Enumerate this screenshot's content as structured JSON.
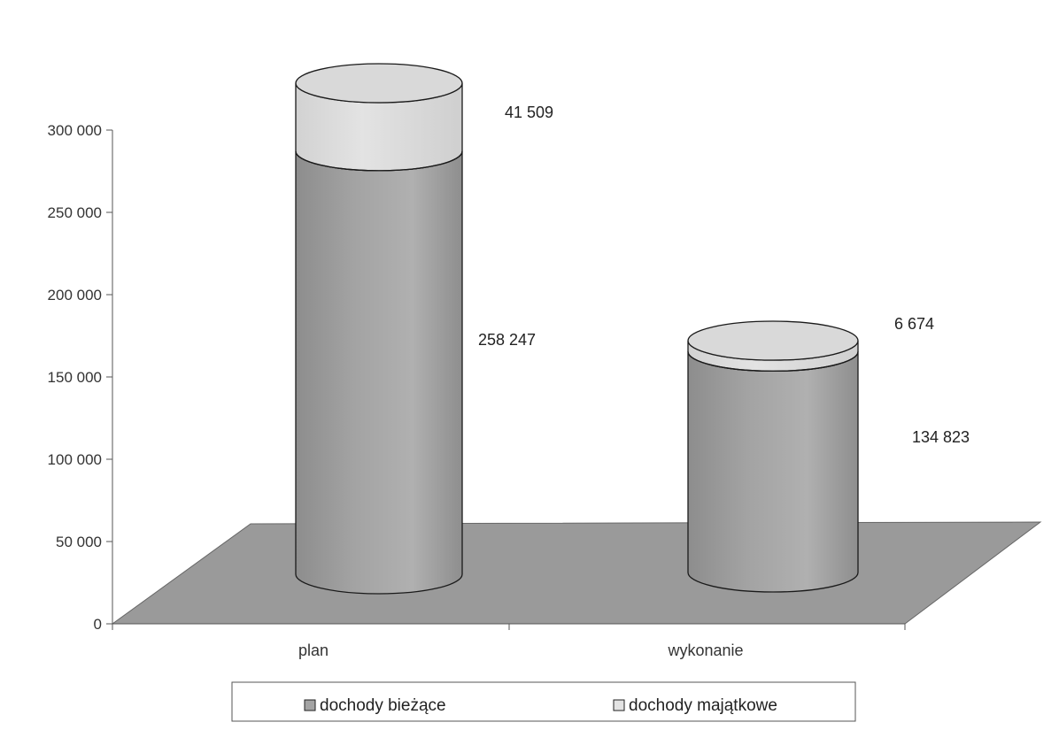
{
  "colors": {
    "floor": "#9a9a9a",
    "current": "#a3a3a3",
    "current_top": "#b8b8b8",
    "capital": "#e3e3e3",
    "outline": "#1a1a1a"
  },
  "chart_data": {
    "type": "bar",
    "style": "3d-cylinder-stacked",
    "categories": [
      "plan",
      "wykonanie"
    ],
    "series": [
      {
        "name": "dochody bieżące",
        "values": [
          258247,
          134823
        ],
        "labels": [
          "258 247",
          "134 823"
        ]
      },
      {
        "name": "dochody majątkowe",
        "values": [
          41509,
          6674
        ],
        "labels": [
          "41 509",
          "6 674"
        ]
      }
    ],
    "ylim": [
      0,
      300000
    ],
    "yticks": [
      0,
      50000,
      100000,
      150000,
      200000,
      250000,
      300000
    ],
    "ytick_labels": [
      "0",
      "50 000",
      "100 000",
      "150 000",
      "200 000",
      "250 000",
      "300 000"
    ],
    "legend_position": "bottom",
    "grid": false,
    "title": "",
    "xlabel": "",
    "ylabel": ""
  }
}
